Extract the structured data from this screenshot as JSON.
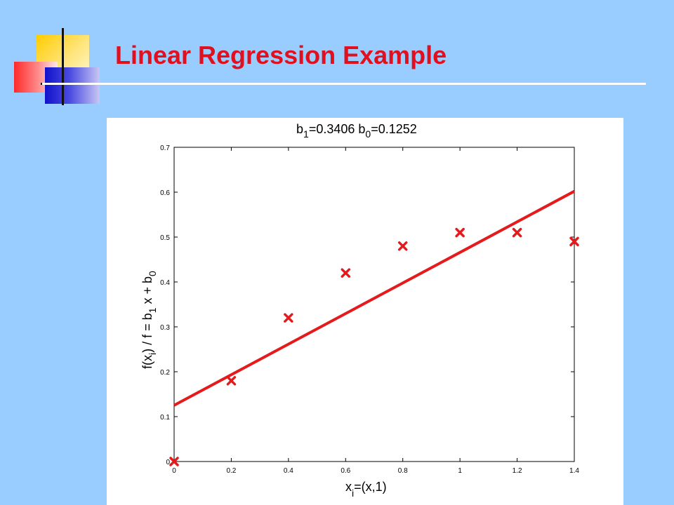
{
  "slide": {
    "title": "Linear Regression Example"
  },
  "chart_data": {
    "type": "scatter",
    "title_parts": {
      "b1_base": "b",
      "b1_sub": "1",
      "b1_value": "=0.3406 b",
      "b0_sub": "0",
      "b0_value": "=0.1252"
    },
    "xlabel_parts": {
      "base": "x",
      "sub": "i",
      "rest": "=(x,1)"
    },
    "ylabel_parts": {
      "p1": "f(x",
      "sub_i": "i",
      "p2": ") / f = b",
      "sub_1": "1",
      "p3": " x + b",
      "sub_0": "0"
    },
    "xlim": [
      0,
      1.4
    ],
    "ylim": [
      0,
      0.7
    ],
    "x_ticks": [
      0,
      0.2,
      0.4,
      0.6,
      0.8,
      1.0,
      1.2,
      1.4
    ],
    "x_tick_labels": [
      "0",
      "0.2",
      "0.4",
      "0.6",
      "0.8",
      "1",
      "1.2",
      "1.4"
    ],
    "y_ticks": [
      0,
      0.1,
      0.2,
      0.3,
      0.4,
      0.5,
      0.6,
      0.7
    ],
    "y_tick_labels": [
      "0",
      "0.1",
      "0.2",
      "0.3",
      "0.4",
      "0.5",
      "0.6",
      "0.7"
    ],
    "series": [
      {
        "x": [
          0,
          0.2,
          0.4,
          0.6,
          0.8,
          1.0,
          1.2,
          1.4
        ],
        "y": [
          0.0,
          0.18,
          0.32,
          0.42,
          0.48,
          0.51,
          0.51,
          0.49
        ],
        "marker": "x",
        "color": "#e41a1c"
      }
    ],
    "fit_line": {
      "slope": 0.3406,
      "intercept": 0.1252,
      "x_range": [
        0,
        1.4
      ],
      "color": "#e41a1c"
    },
    "grid": false
  }
}
